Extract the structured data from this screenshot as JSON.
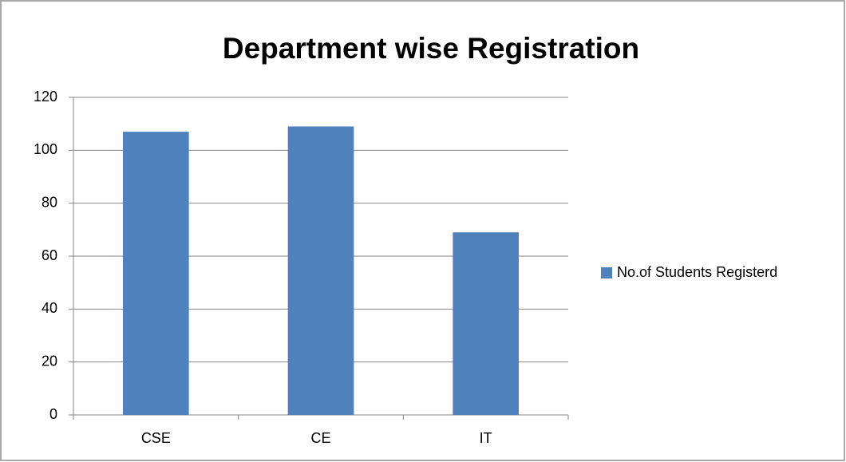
{
  "chart_data": {
    "type": "bar",
    "title": "Department wise Registration",
    "categories": [
      "CSE",
      "CE",
      "IT"
    ],
    "series": [
      {
        "name": "No.of Students Registerd",
        "color": "#4f81bd",
        "values": [
          107,
          109,
          69
        ]
      }
    ],
    "ylim": [
      0,
      120
    ],
    "yticks": [
      0,
      20,
      40,
      60,
      80,
      100,
      120
    ],
    "grid": true,
    "legend": "right"
  }
}
